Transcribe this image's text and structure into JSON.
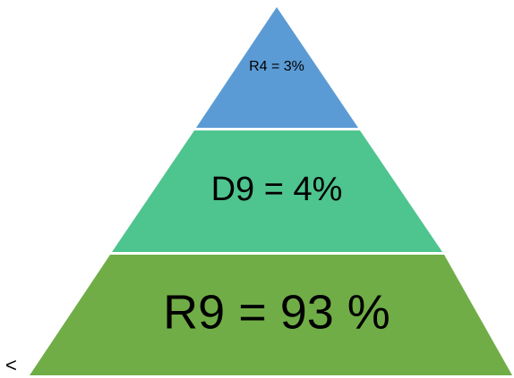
{
  "pyramid": {
    "tiers": [
      {
        "label": "R4 = 3%",
        "color": "#5b9bd5"
      },
      {
        "label": "D9 = 4%",
        "color": "#4ec48e"
      },
      {
        "label": "R9 = 93 %",
        "color": "#70ad47"
      }
    ]
  },
  "stray_glyph": "<"
}
